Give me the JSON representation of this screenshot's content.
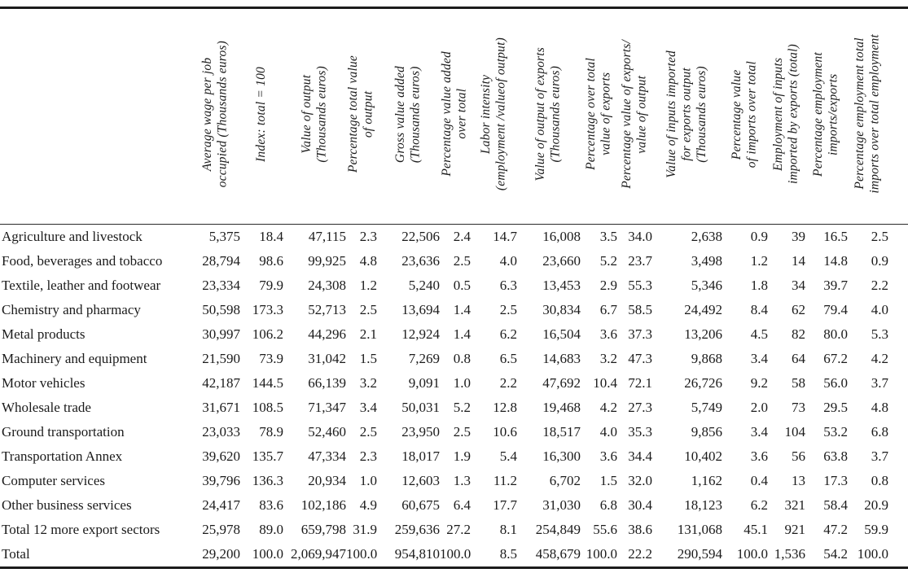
{
  "table": {
    "corner_header": "",
    "columns": [
      "Average wage per job\noccupied (Thousands euros)",
      "Index: total = 100",
      "Value of output\n(Thousands euros)",
      "Percentage total value\nof output",
      "Gross value added\n(Thousands euros)",
      "Percentage value added\nover total",
      "Labor intensity\n(employment /valueof output)",
      "Value of output of exports\n(Thousands euros)",
      "Percentage over total\nvalue of exports",
      "Percentage value of exports/\nvalue of output",
      "Value of inputs imported\nfor exports output\n(Thousands euros)",
      "Percentage value\nof imports over total",
      "Employment of inputs\nimported by exports (total)",
      "Percentage employment\nimports/exports",
      "Percentage employment total\nimports over total employment"
    ],
    "rows": [
      {
        "label": "Agriculture and livestock",
        "values": [
          "5,375",
          "18.4",
          "47,115",
          "2.3",
          "22,506",
          "2.4",
          "14.7",
          "16,008",
          "3.5",
          "34.0",
          "2,638",
          "0.9",
          "39",
          "16.5",
          "2.5"
        ]
      },
      {
        "label": "Food, beverages and tobacco",
        "values": [
          "28,794",
          "98.6",
          "99,925",
          "4.8",
          "23,636",
          "2.5",
          "4.0",
          "23,660",
          "5.2",
          "23.7",
          "3,498",
          "1.2",
          "14",
          "14.8",
          "0.9"
        ]
      },
      {
        "label": "Textile, leather and footwear",
        "values": [
          "23,334",
          "79.9",
          "24,308",
          "1.2",
          "5,240",
          "0.5",
          "6.3",
          "13,453",
          "2.9",
          "55.3",
          "5,346",
          "1.8",
          "34",
          "39.7",
          "2.2"
        ]
      },
      {
        "label": "Chemistry and pharmacy",
        "values": [
          "50,598",
          "173.3",
          "52,713",
          "2.5",
          "13,694",
          "1.4",
          "2.5",
          "30,834",
          "6.7",
          "58.5",
          "24,492",
          "8.4",
          "62",
          "79.4",
          "4.0"
        ]
      },
      {
        "label": "Metal products",
        "values": [
          "30,997",
          "106.2",
          "44,296",
          "2.1",
          "12,924",
          "1.4",
          "6.2",
          "16,504",
          "3.6",
          "37.3",
          "13,206",
          "4.5",
          "82",
          "80.0",
          "5.3"
        ]
      },
      {
        "label": "Machinery and equipment",
        "values": [
          "21,590",
          "73.9",
          "31,042",
          "1.5",
          "7,269",
          "0.8",
          "6.5",
          "14,683",
          "3.2",
          "47.3",
          "9,868",
          "3.4",
          "64",
          "67.2",
          "4.2"
        ]
      },
      {
        "label": "Motor vehicles",
        "values": [
          "42,187",
          "144.5",
          "66,139",
          "3.2",
          "9,091",
          "1.0",
          "2.2",
          "47,692",
          "10.4",
          "72.1",
          "26,726",
          "9.2",
          "58",
          "56.0",
          "3.7"
        ]
      },
      {
        "label": "Wholesale trade",
        "values": [
          "31,671",
          "108.5",
          "71,347",
          "3.4",
          "50,031",
          "5.2",
          "12.8",
          "19,468",
          "4.2",
          "27.3",
          "5,749",
          "2.0",
          "73",
          "29.5",
          "4.8"
        ]
      },
      {
        "label": "Ground transportation",
        "values": [
          "23,033",
          "78.9",
          "52,460",
          "2.5",
          "23,950",
          "2.5",
          "10.6",
          "18,517",
          "4.0",
          "35.3",
          "9,856",
          "3.4",
          "104",
          "53.2",
          "6.8"
        ]
      },
      {
        "label": "Transportation Annex",
        "values": [
          "39,620",
          "135.7",
          "47,334",
          "2.3",
          "18,017",
          "1.9",
          "5.4",
          "16,300",
          "3.6",
          "34.4",
          "10,402",
          "3.6",
          "56",
          "63.8",
          "3.7"
        ]
      },
      {
        "label": "Computer services",
        "values": [
          "39,796",
          "136.3",
          "20,934",
          "1.0",
          "12,603",
          "1.3",
          "11.2",
          "6,702",
          "1.5",
          "32.0",
          "1,162",
          "0.4",
          "13",
          "17.3",
          "0.8"
        ]
      },
      {
        "label": "Other business services",
        "values": [
          "24,417",
          "83.6",
          "102,186",
          "4.9",
          "60,675",
          "6.4",
          "17.7",
          "31,030",
          "6.8",
          "30.4",
          "18,123",
          "6.2",
          "321",
          "58.4",
          "20.9"
        ]
      },
      {
        "label": "Total 12 more export sectors",
        "values": [
          "25,978",
          "89.0",
          "659,798",
          "31.9",
          "259,636",
          "27.2",
          "8.1",
          "254,849",
          "55.6",
          "38.6",
          "131,068",
          "45.1",
          "921",
          "47.2",
          "59.9"
        ]
      },
      {
        "label": "Total",
        "values": [
          "29,200",
          "100.0",
          "2,069,947",
          "100.0",
          "954,810",
          "100.0",
          "8.5",
          "458,679",
          "100.0",
          "22.2",
          "290,594",
          "100.0",
          "1,536",
          "54.2",
          "100.0"
        ]
      }
    ]
  }
}
